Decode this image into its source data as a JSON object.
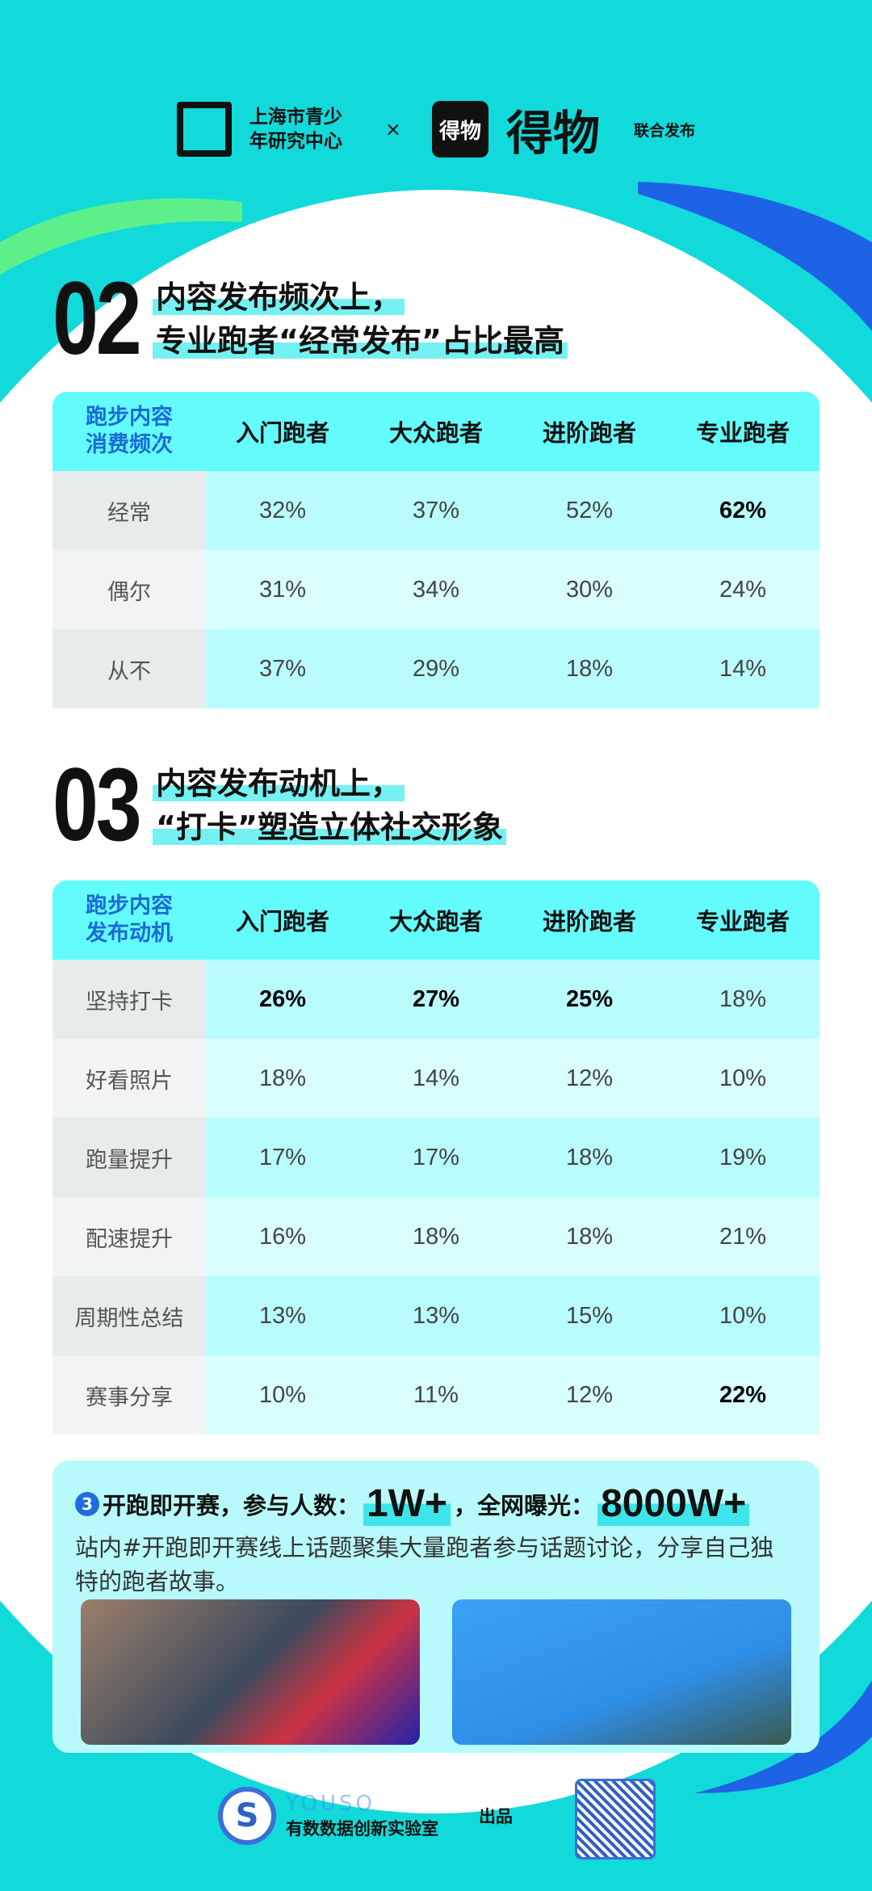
{
  "header": {
    "org": "上海市青少年研究中心",
    "org_line1": "上海市青少",
    "org_line2": "年研究中心",
    "x": "×",
    "brand_icon": "得物",
    "brand": "得物",
    "joint": "联合发布"
  },
  "s2": {
    "num": "02",
    "title1": "内容发布频次上，",
    "title2": "专业跑者“经常发布”占比最高",
    "table": {
      "corner": "跑步内容消费频次",
      "cols": [
        "入门跑者",
        "大众跑者",
        "进阶跑者",
        "专业跑者"
      ],
      "rows": [
        {
          "label": "经常",
          "v": [
            "32%",
            "37%",
            "52%",
            "62%"
          ],
          "bold": [
            3
          ]
        },
        {
          "label": "偶尔",
          "v": [
            "31%",
            "34%",
            "30%",
            "24%"
          ],
          "bold": []
        },
        {
          "label": "从不",
          "v": [
            "37%",
            "29%",
            "18%",
            "14%"
          ],
          "bold": []
        }
      ]
    }
  },
  "s3": {
    "num": "03",
    "title1": "内容发布动机上，",
    "title2": "“打卡”塑造立体社交形象",
    "table": {
      "corner": "跑步内容发布动机",
      "cols": [
        "入门跑者",
        "大众跑者",
        "进阶跑者",
        "专业跑者"
      ],
      "rows": [
        {
          "label": "坚持打卡",
          "v": [
            "26%",
            "27%",
            "25%",
            "18%"
          ],
          "bold": [
            0,
            1,
            2
          ]
        },
        {
          "label": "好看照片",
          "v": [
            "18%",
            "14%",
            "12%",
            "10%"
          ],
          "bold": []
        },
        {
          "label": "跑量提升",
          "v": [
            "17%",
            "17%",
            "18%",
            "19%"
          ],
          "bold": []
        },
        {
          "label": "配速提升",
          "v": [
            "16%",
            "18%",
            "18%",
            "21%"
          ],
          "bold": []
        },
        {
          "label": "周期性总结",
          "v": [
            "13%",
            "13%",
            "15%",
            "10%"
          ],
          "bold": []
        },
        {
          "label": "赛事分享",
          "v": [
            "10%",
            "11%",
            "12%",
            "22%"
          ],
          "bold": [
            3
          ]
        }
      ]
    }
  },
  "callout": {
    "badge": "3",
    "head1": "开跑即开赛，参与人数：",
    "v1": "1W+",
    "head2": "，全网曝光：",
    "v2": "8000W+",
    "body": "站内#开跑即开赛线上话题聚集大量跑者参与话题讨论，分享自己独特的跑者故事。"
  },
  "footer": {
    "logo_text": "YOUSO",
    "lab": "有数数据创新实验室",
    "produced": "出品"
  }
}
